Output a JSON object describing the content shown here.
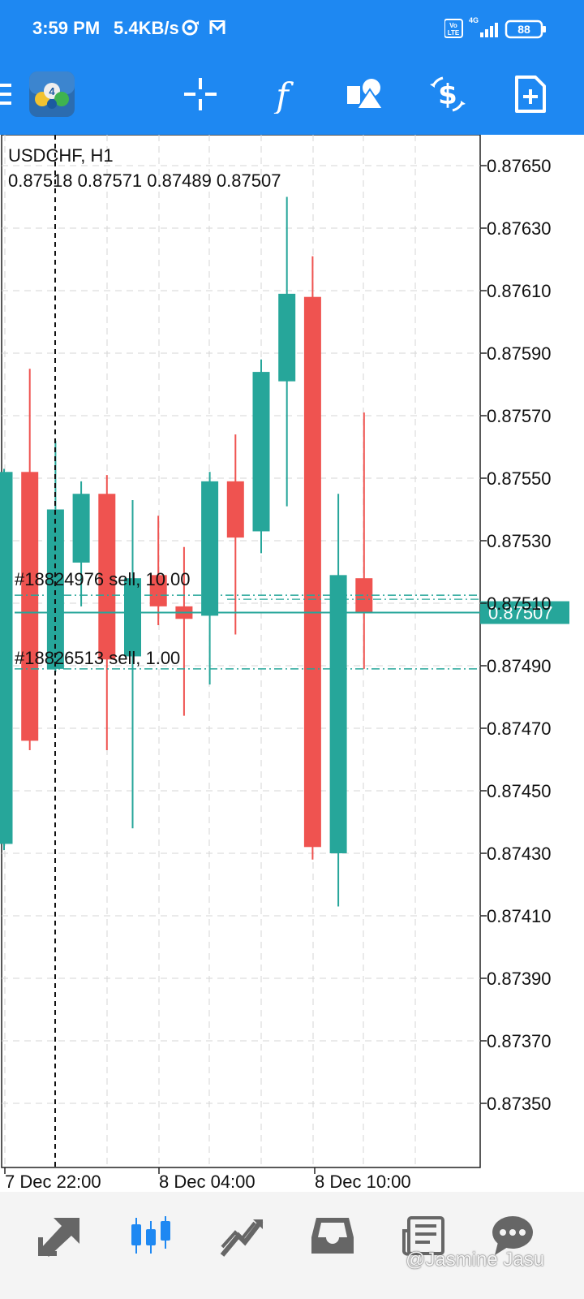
{
  "status_bar": {
    "time": "3:59 PM",
    "speed": "5.4KB/s",
    "battery": "88",
    "network": "4G",
    "volte": "Vo LTE"
  },
  "toolbar": {
    "menu_icon": "hamburger-menu-icon",
    "logo": "metatrader-4-logo",
    "buttons": [
      "crosshair-icon",
      "indicators-icon",
      "objects-icon",
      "trade-icon",
      "new-order-icon"
    ]
  },
  "chart": {
    "symbol": "USDCHF, H1",
    "ohlc": "0.87518 0.87571 0.87489 0.87507",
    "bid_price": "0.87507",
    "price_labels": [
      "0.87650",
      "0.87630",
      "0.87610",
      "0.87590",
      "0.87570",
      "0.87550",
      "0.87530",
      "0.87510",
      "0.87490",
      "0.87470",
      "0.87450",
      "0.87430",
      "0.87410",
      "0.87390",
      "0.87370",
      "0.87350"
    ],
    "time_labels": [
      "7 Dec 22:00",
      "8 Dec 04:00",
      "8 Dec 10:00"
    ],
    "order_lines": [
      {
        "label": "#18824976 sell, 10.00"
      },
      {
        "label": "#18826513 sell, 1.00"
      }
    ],
    "colors": {
      "bull": "#26a69a",
      "bear": "#ef5350",
      "accent": "#1e88f2"
    }
  },
  "chart_data": {
    "type": "candlestick",
    "title": "USDCHF, H1",
    "ylim": [
      0.8733,
      0.8767
    ],
    "candles": [
      {
        "o": 0.87433,
        "h": 0.87553,
        "l": 0.87431,
        "c": 0.87552
      },
      {
        "o": 0.87552,
        "h": 0.87585,
        "l": 0.87463,
        "c": 0.87466
      },
      {
        "o": 0.87489,
        "h": 0.87562,
        "l": 0.87488,
        "c": 0.8754
      },
      {
        "o": 0.87523,
        "h": 0.87549,
        "l": 0.87509,
        "c": 0.87545
      },
      {
        "o": 0.87545,
        "h": 0.87551,
        "l": 0.87463,
        "c": 0.87492
      },
      {
        "o": 0.87493,
        "h": 0.87543,
        "l": 0.87438,
        "c": 0.87518
      },
      {
        "o": 0.87519,
        "h": 0.87538,
        "l": 0.87503,
        "c": 0.87509
      },
      {
        "o": 0.87509,
        "h": 0.87528,
        "l": 0.87474,
        "c": 0.87505
      },
      {
        "o": 0.87506,
        "h": 0.87552,
        "l": 0.87484,
        "c": 0.87549
      },
      {
        "o": 0.87549,
        "h": 0.87564,
        "l": 0.875,
        "c": 0.87531
      },
      {
        "o": 0.87533,
        "h": 0.87588,
        "l": 0.87526,
        "c": 0.87584
      },
      {
        "o": 0.87581,
        "h": 0.8764,
        "l": 0.87541,
        "c": 0.87609
      },
      {
        "o": 0.87608,
        "h": 0.87621,
        "l": 0.87428,
        "c": 0.87432
      },
      {
        "o": 0.8743,
        "h": 0.87545,
        "l": 0.87413,
        "c": 0.87519
      },
      {
        "o": 0.87518,
        "h": 0.87571,
        "l": 0.87489,
        "c": 0.87507
      }
    ],
    "order_levels": [
      0.87511,
      0.87489
    ],
    "bid": 0.87507
  },
  "bottom_nav": {
    "items": [
      "quotes-icon",
      "chart-icon",
      "trade-icon",
      "history-icon",
      "news-icon",
      "chat-icon"
    ]
  },
  "watermark": "@Jasmine Jasu"
}
